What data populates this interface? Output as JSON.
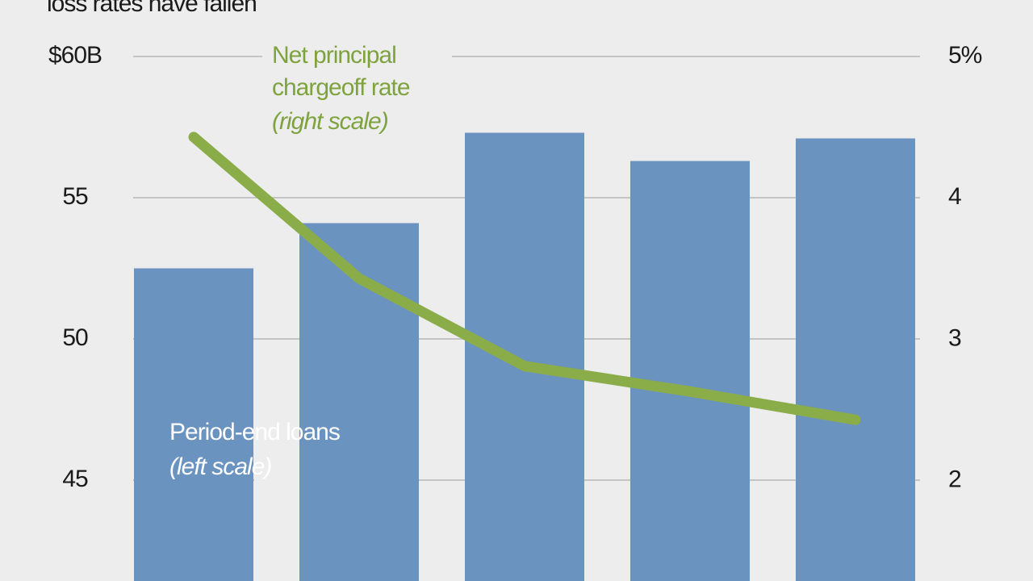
{
  "chart_data": {
    "type": "bar-line",
    "title": "loss rates have fallen",
    "categories": [
      null,
      null,
      null,
      null,
      null
    ],
    "series": [
      {
        "name": "Period-end loans",
        "type": "bar",
        "color": "#6b93c0",
        "axis": "y",
        "values": [
          52.5,
          54.1,
          57.3,
          56.3,
          57.1
        ]
      },
      {
        "name": "Net principal chargeoff rate",
        "type": "line",
        "color": "#8aad4a",
        "axis": "y2",
        "values": [
          4.43,
          3.43,
          2.81,
          2.63,
          2.43
        ]
      }
    ],
    "scale_notes": [
      "(left scale)",
      "(right scale)"
    ],
    "ylim": [
      41.43,
      60
    ],
    "yticks": [
      {
        "value": 60,
        "label": "$60B"
      },
      55,
      50,
      45
    ],
    "y2lim": [
      1.29,
      5
    ],
    "y2ticks": [
      {
        "value": 5,
        "label": "5%"
      },
      4,
      3,
      2
    ],
    "grid": true
  }
}
